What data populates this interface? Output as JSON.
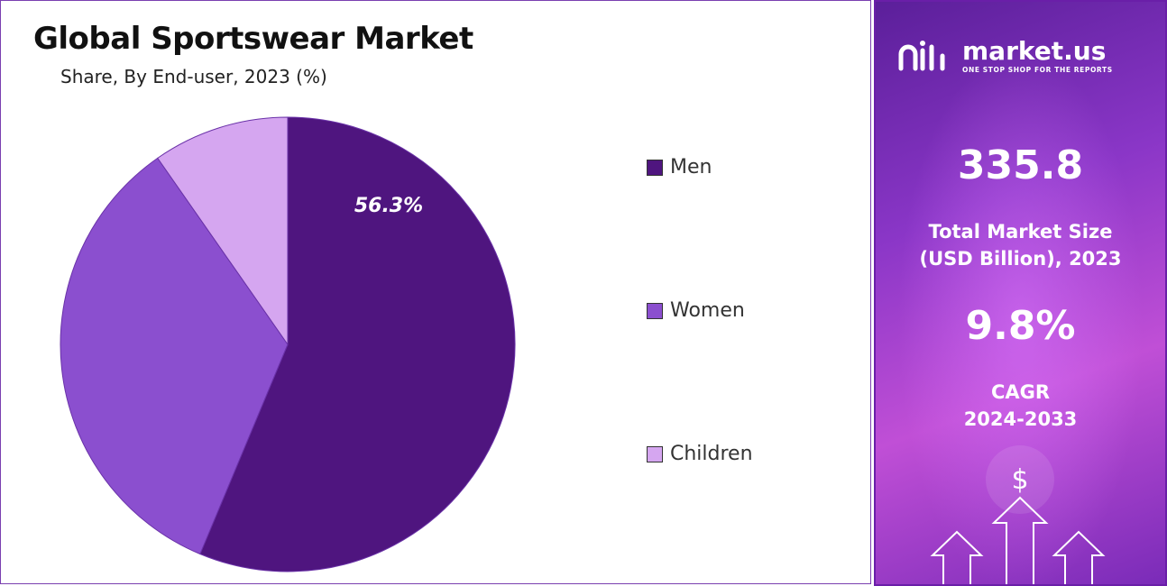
{
  "chart_data": {
    "type": "pie",
    "title": "Global Sportswear Market",
    "subtitle": "Share, By End-user, 2023 (%)",
    "categories": [
      "Men",
      "Women",
      "Children"
    ],
    "values": [
      56.3,
      34.0,
      9.7
    ],
    "data_labels": [
      "56.3%",
      "",
      ""
    ],
    "colors": [
      "#4f157f",
      "#8b4fcf",
      "#d5a6f0"
    ],
    "legend_position": "right"
  },
  "sidebar": {
    "brand_name": "market.us",
    "brand_tagline": "ONE STOP SHOP FOR THE REPORTS",
    "market_size_value": "335.8",
    "market_size_label_line1": "Total Market Size",
    "market_size_label_line2": "(USD Billion), 2023",
    "cagr_value": "9.8%",
    "cagr_label_line1": "CAGR",
    "cagr_label_line2": "2024-2033",
    "dollar_symbol": "$",
    "icons": [
      "market-us-logo-icon",
      "dollar-icon",
      "up-arrow-icon"
    ],
    "background_colors": [
      "#5b1f9a",
      "#c04fd6"
    ]
  }
}
